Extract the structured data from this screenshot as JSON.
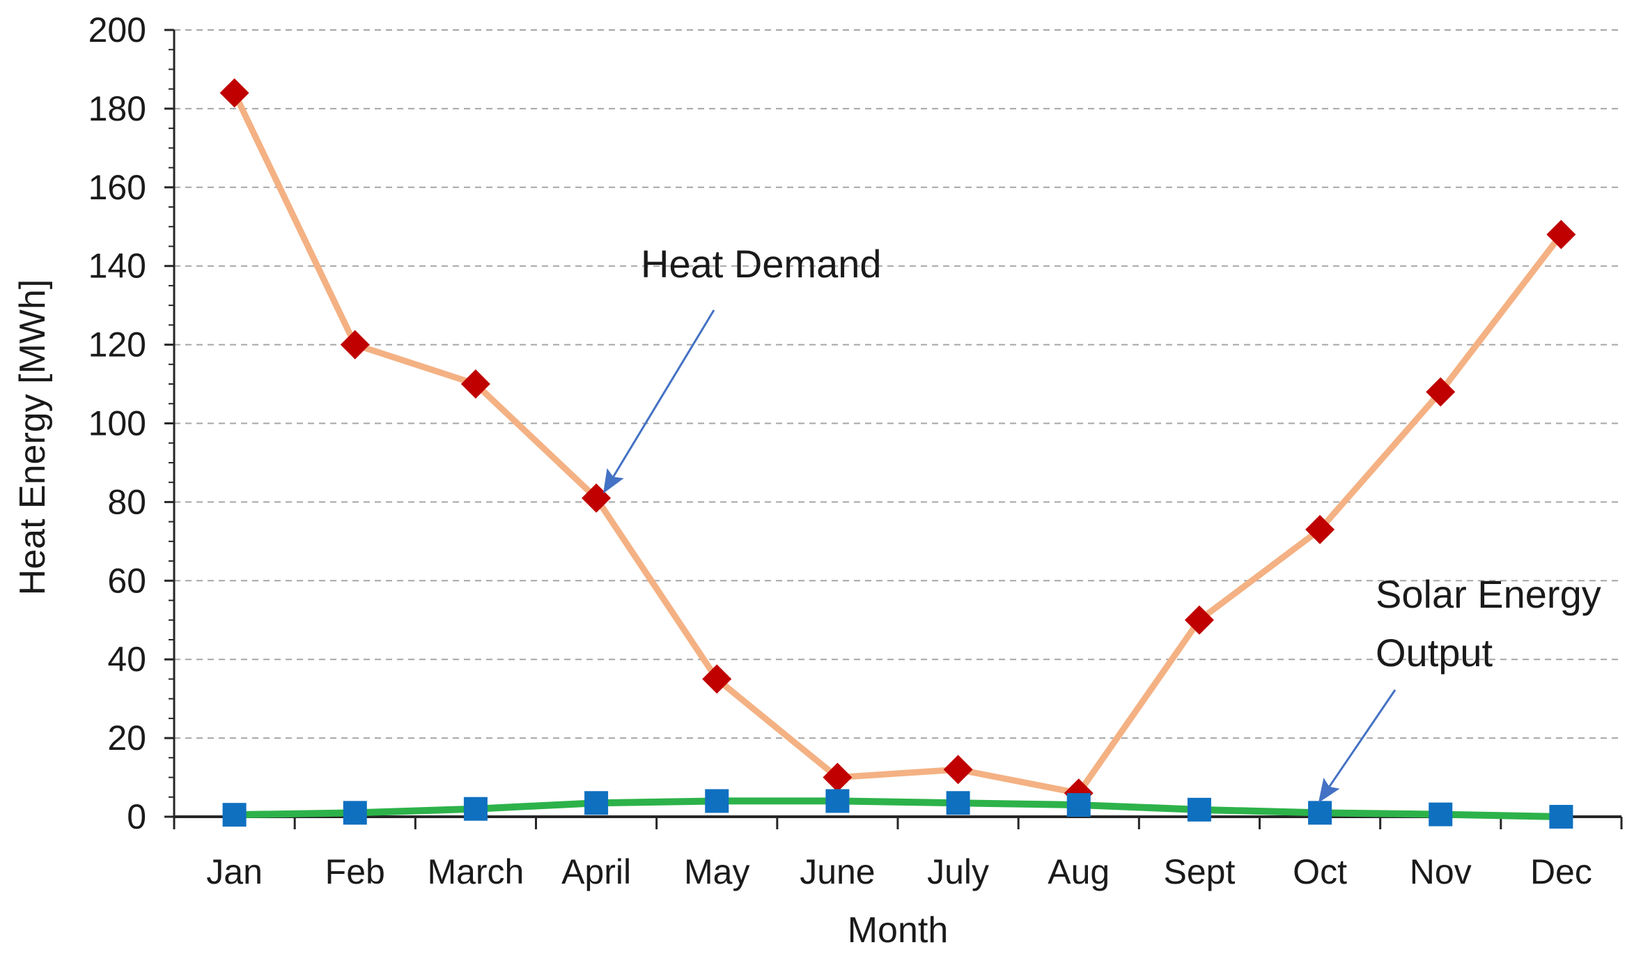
{
  "chart_data": {
    "type": "line",
    "title": "",
    "xlabel": "Month",
    "ylabel": "Heat Energy [MWh]",
    "ylim": [
      0,
      200
    ],
    "yticks": [
      0,
      20,
      40,
      60,
      80,
      100,
      120,
      140,
      160,
      180,
      200
    ],
    "grid": true,
    "categories": [
      "Jan",
      "Feb",
      "March",
      "April",
      "May",
      "June",
      "July",
      "Aug",
      "Sept",
      "Oct",
      "Nov",
      "Dec"
    ],
    "series": [
      {
        "name": "Heat Demand",
        "values": [
          184,
          120,
          110,
          81,
          35,
          10,
          12,
          6,
          50,
          73,
          108,
          148
        ],
        "line_color": "#f4b183",
        "marker_color": "#c00000",
        "marker": "diamond"
      },
      {
        "name": "Solar Energy Output",
        "values": [
          0.5,
          1,
          2,
          3.5,
          4,
          4,
          3.5,
          3,
          1.8,
          1,
          0.6,
          0
        ],
        "line_color": "#2db24a",
        "marker_color": "#0f70c0",
        "marker": "square"
      }
    ],
    "annotations": [
      {
        "lines": [
          "Heat Demand"
        ],
        "arrow_to": {
          "category": "April",
          "value": 81
        }
      },
      {
        "lines": [
          "Solar Energy",
          "Output"
        ],
        "arrow_to": {
          "category": "Oct",
          "value": 2
        }
      }
    ],
    "arrow_color": "#4472c4"
  }
}
